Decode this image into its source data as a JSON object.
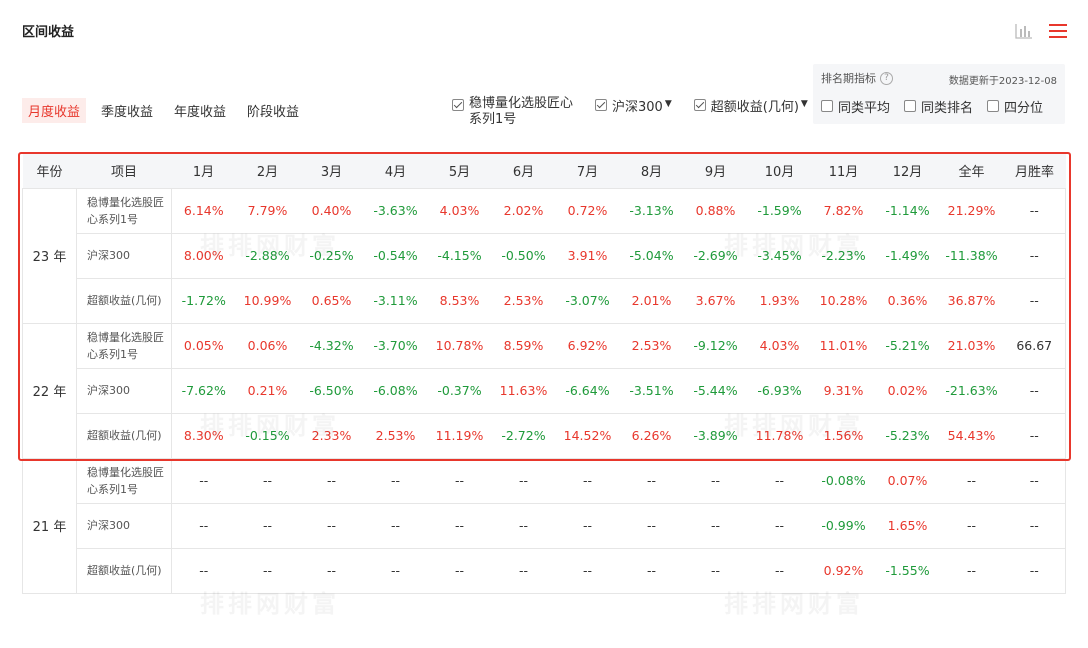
{
  "header": {
    "title": "区间收益"
  },
  "tabs": [
    {
      "label": "月度收益",
      "active": true
    },
    {
      "label": "季度收益",
      "active": false
    },
    {
      "label": "年度收益",
      "active": false
    },
    {
      "label": "阶段收益",
      "active": false
    }
  ],
  "filters": [
    {
      "label": "稳博量化选股匠心系列1号",
      "checked": true,
      "dropdown": false
    },
    {
      "label": "沪深300",
      "checked": true,
      "dropdown": true
    },
    {
      "label": "超额收益(几何)",
      "checked": true,
      "dropdown": true
    }
  ],
  "ranking_panel": {
    "title": "排名期指标",
    "help": "?",
    "updated": "数据更新于2023-12-08",
    "options": [
      {
        "label": "同类平均",
        "checked": false
      },
      {
        "label": "同类排名",
        "checked": false
      },
      {
        "label": "四分位",
        "checked": false
      }
    ]
  },
  "table": {
    "headers": [
      "年份",
      "项目",
      "1月",
      "2月",
      "3月",
      "4月",
      "5月",
      "6月",
      "7月",
      "8月",
      "9月",
      "10月",
      "11月",
      "12月",
      "全年",
      "月胜率"
    ],
    "groups": [
      {
        "year": "23 年",
        "rows": [
          {
            "item": "稳博量化选股匠心系列1号",
            "values": [
              "6.14%",
              "7.79%",
              "0.40%",
              "-3.63%",
              "4.03%",
              "2.02%",
              "0.72%",
              "-3.13%",
              "0.88%",
              "-1.59%",
              "7.82%",
              "-1.14%",
              "21.29%",
              "--"
            ]
          },
          {
            "item": "沪深300",
            "values": [
              "8.00%",
              "-2.88%",
              "-0.25%",
              "-0.54%",
              "-4.15%",
              "-0.50%",
              "3.91%",
              "-5.04%",
              "-2.69%",
              "-3.45%",
              "-2.23%",
              "-1.49%",
              "-11.38%",
              "--"
            ]
          },
          {
            "item": "超额收益(几何)",
            "values": [
              "-1.72%",
              "10.99%",
              "0.65%",
              "-3.11%",
              "8.53%",
              "2.53%",
              "-3.07%",
              "2.01%",
              "3.67%",
              "1.93%",
              "10.28%",
              "0.36%",
              "36.87%",
              "--"
            ]
          }
        ]
      },
      {
        "year": "22 年",
        "rows": [
          {
            "item": "稳博量化选股匠心系列1号",
            "values": [
              "0.05%",
              "0.06%",
              "-4.32%",
              "-3.70%",
              "10.78%",
              "8.59%",
              "6.92%",
              "2.53%",
              "-9.12%",
              "4.03%",
              "11.01%",
              "-5.21%",
              "21.03%",
              "66.67"
            ]
          },
          {
            "item": "沪深300",
            "values": [
              "-7.62%",
              "0.21%",
              "-6.50%",
              "-6.08%",
              "-0.37%",
              "11.63%",
              "-6.64%",
              "-3.51%",
              "-5.44%",
              "-6.93%",
              "9.31%",
              "0.02%",
              "-21.63%",
              "--"
            ]
          },
          {
            "item": "超额收益(几何)",
            "values": [
              "8.30%",
              "-0.15%",
              "2.33%",
              "2.53%",
              "11.19%",
              "-2.72%",
              "14.52%",
              "6.26%",
              "-3.89%",
              "11.78%",
              "1.56%",
              "-5.23%",
              "54.43%",
              "--"
            ]
          }
        ]
      },
      {
        "year": "21 年",
        "rows": [
          {
            "item": "稳博量化选股匠心系列1号",
            "values": [
              "--",
              "--",
              "--",
              "--",
              "--",
              "--",
              "--",
              "--",
              "--",
              "--",
              "-0.08%",
              "0.07%",
              "--",
              "--"
            ]
          },
          {
            "item": "沪深300",
            "values": [
              "--",
              "--",
              "--",
              "--",
              "--",
              "--",
              "--",
              "--",
              "--",
              "--",
              "-0.99%",
              "1.65%",
              "--",
              "--"
            ]
          },
          {
            "item": "超额收益(几何)",
            "values": [
              "--",
              "--",
              "--",
              "--",
              "--",
              "--",
              "--",
              "--",
              "--",
              "--",
              "0.92%",
              "-1.55%",
              "--",
              "--"
            ]
          }
        ]
      }
    ]
  },
  "watermark": "排排网财富",
  "colors": {
    "positive": "#e8372c",
    "negative": "#1f9a3a",
    "accent": "#e8372c"
  }
}
